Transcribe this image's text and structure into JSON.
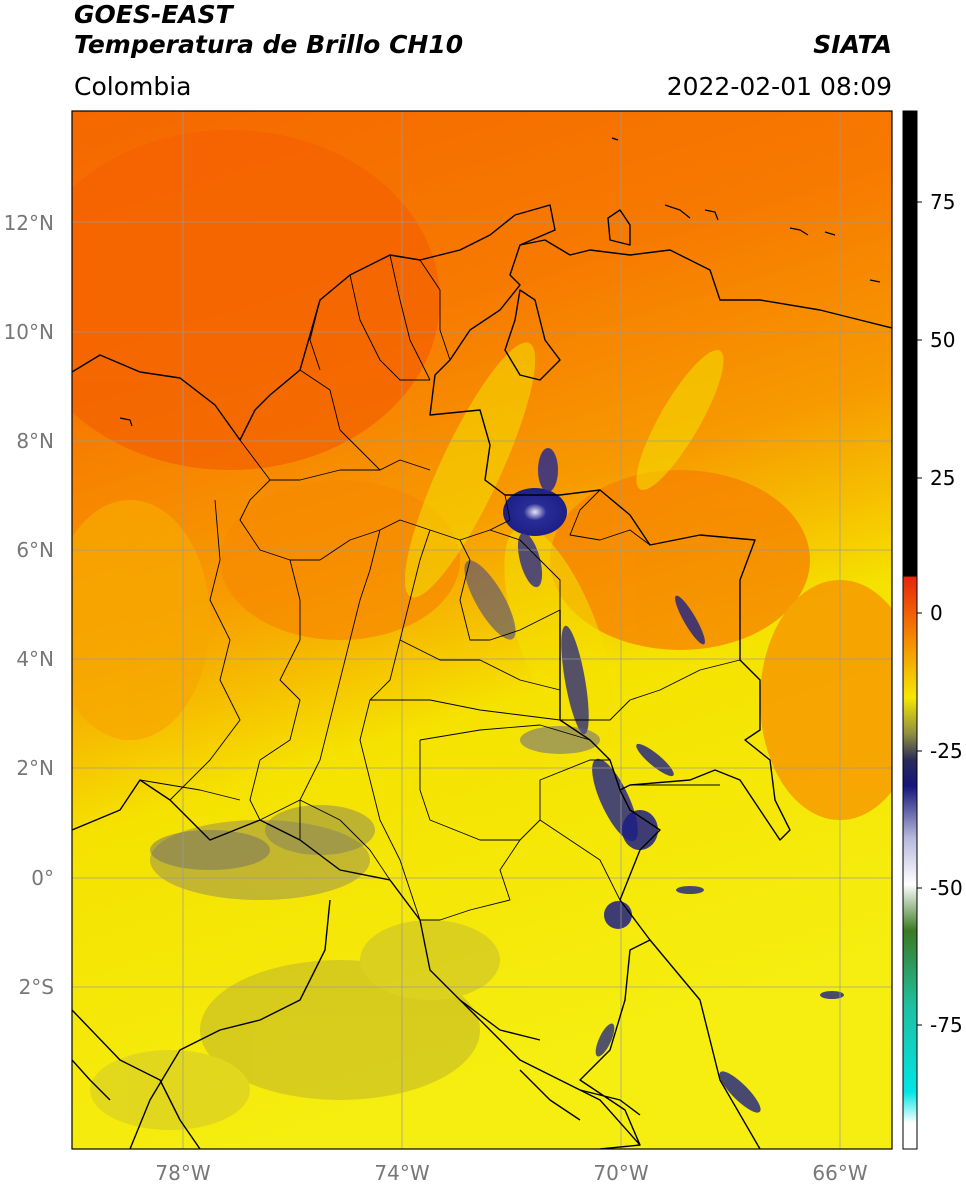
{
  "header": {
    "satellite": "GOES-EAST",
    "product": "Temperatura de Brillo CH10",
    "region": "Colombia",
    "agency": "SIATA",
    "timestamp": "2022-02-01 08:09"
  },
  "axes": {
    "lat_labels": [
      "12°N",
      "10°N",
      "8°N",
      "6°N",
      "4°N",
      "2°N",
      "0°",
      "2°S"
    ],
    "lon_labels": [
      "78°W",
      "74°W",
      "70°W",
      "66°W"
    ]
  },
  "colorbar": {
    "tick_labels": [
      "75",
      "50",
      "25",
      "0",
      "-25",
      "-50",
      "-75"
    ],
    "colors": {
      "black": "#000000",
      "red": "#e8250c",
      "orange": "#f58c00",
      "yellow": "#f5e800",
      "olive": "#8f8e40",
      "navy": "#14167a",
      "white": "#ffffff",
      "green": "#3b7a22",
      "teal": "#1fbf9e",
      "cyan": "#00e6e6"
    }
  },
  "map_colors": {
    "warm_orange": "#f56a00",
    "orange": "#f79400",
    "yellow": "#f5ea10",
    "dry_olive": "#c6bd2c",
    "cold_cloud": "#1c1f86",
    "border": "#000000",
    "grid": "#9a9a9a"
  }
}
